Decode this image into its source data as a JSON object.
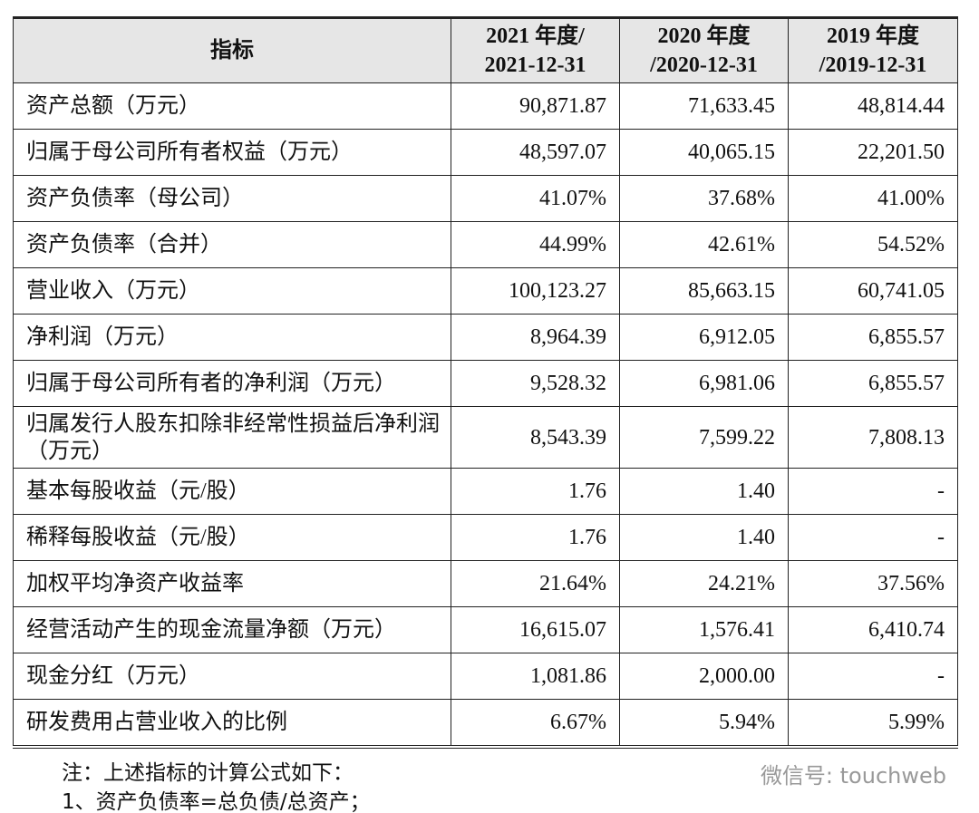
{
  "table": {
    "header": [
      [
        "指标"
      ],
      [
        "2021 年度/",
        "2021-12-31"
      ],
      [
        "2020 年度",
        "/2020-12-31"
      ],
      [
        "2019 年度",
        "/2019-12-31"
      ]
    ],
    "rows": [
      [
        "资产总额（万元）",
        "90,871.87",
        "71,633.45",
        "48,814.44"
      ],
      [
        "归属于母公司所有者权益（万元）",
        "48,597.07",
        "40,065.15",
        "22,201.50"
      ],
      [
        "资产负债率（母公司）",
        "41.07%",
        "37.68%",
        "41.00%"
      ],
      [
        "资产负债率（合并）",
        "44.99%",
        "42.61%",
        "54.52%"
      ],
      [
        "营业收入（万元）",
        "100,123.27",
        "85,663.15",
        "60,741.05"
      ],
      [
        "净利润（万元）",
        "8,964.39",
        "6,912.05",
        "6,855.57"
      ],
      [
        "归属于母公司所有者的净利润（万元）",
        "9,528.32",
        "6,981.06",
        "6,855.57"
      ],
      [
        "归属发行人股东扣除非经常性损益后净利润（万元）",
        "8,543.39",
        "7,599.22",
        "7,808.13"
      ],
      [
        "基本每股收益（元/股）",
        "1.76",
        "1.40",
        "-"
      ],
      [
        "稀释每股收益（元/股）",
        "1.76",
        "1.40",
        "-"
      ],
      [
        "加权平均净资产收益率",
        "21.64%",
        "24.21%",
        "37.56%"
      ],
      [
        "经营活动产生的现金流量净额（万元）",
        "16,615.07",
        "1,576.41",
        "6,410.74"
      ],
      [
        "现金分红（万元）",
        "1,081.86",
        "2,000.00",
        "-"
      ],
      [
        "研发费用占营业收入的比例",
        "6.67%",
        "5.94%",
        "5.99%"
      ]
    ]
  },
  "notes": [
    "注：上述指标的计算公式如下：",
    "1、资产负债率=总负债/总资产；"
  ],
  "watermark": "微信号: touchweb"
}
